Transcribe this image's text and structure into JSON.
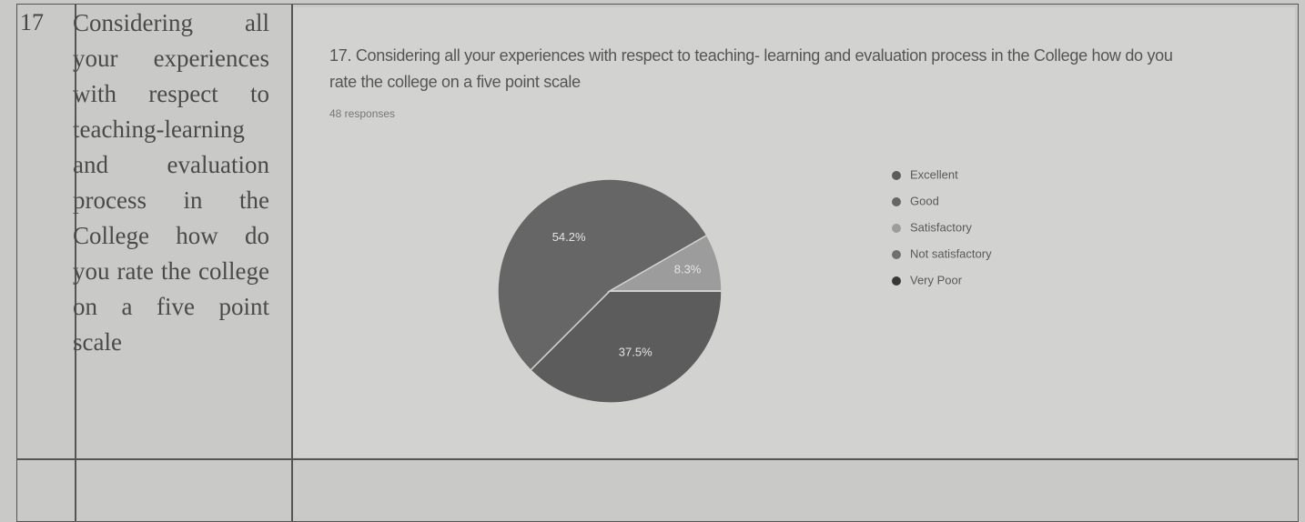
{
  "table": {
    "rows": [
      {
        "number": "17",
        "question": "Considering all your experiences with respect to teaching-learning and evaluation process in the College how do you rate the college on a five point scale"
      }
    ]
  },
  "chart_data": {
    "type": "pie",
    "title": "17. Considering all your experiences with respect to teaching- learning and evaluation process in the College how do you rate the college on a five point scale",
    "subtitle": "48 responses",
    "categories": [
      "Excellent",
      "Good",
      "Satisfactory",
      "Not satisfactory",
      "Very Poor"
    ],
    "values": [
      37.5,
      54.2,
      8.3,
      0,
      0
    ],
    "value_labels": [
      "37.5%",
      "54.2%",
      "8.3%",
      null,
      null
    ],
    "colors": [
      "#5c5c5c",
      "#666666",
      "#9c9c9c",
      "#707070",
      "#383838"
    ],
    "legend": "right"
  }
}
